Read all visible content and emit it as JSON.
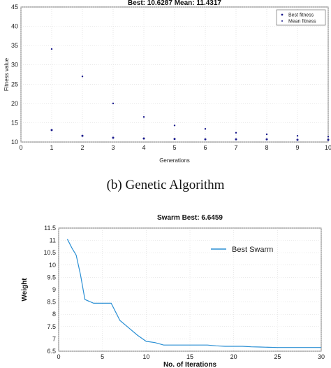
{
  "caption": "(b) Genetic Algorithm",
  "chart_data": [
    {
      "type": "scatter",
      "title": "Best: 10.6287 Mean: 11.4317",
      "xlabel": "Generations",
      "ylabel": "Fitness value",
      "xlim": [
        0,
        10
      ],
      "ylim": [
        10,
        45
      ],
      "xticks": [
        0,
        1,
        2,
        3,
        4,
        5,
        6,
        7,
        8,
        9,
        10
      ],
      "yticks": [
        10,
        15,
        20,
        25,
        30,
        35,
        40,
        45
      ],
      "legend_position": "top-right",
      "series": [
        {
          "name": "Best fitness",
          "color": "#1a1a8c",
          "x": [
            1,
            2,
            3,
            4,
            5,
            6,
            7,
            8,
            9,
            10
          ],
          "y": [
            13.1,
            11.6,
            11.1,
            10.9,
            10.8,
            10.7,
            10.7,
            10.7,
            10.6,
            10.6
          ]
        },
        {
          "name": "Mean fitness",
          "color": "#1a1a8c",
          "x": [
            1,
            2,
            3,
            4,
            5,
            6,
            7,
            8,
            9,
            10
          ],
          "y": [
            34.1,
            27.0,
            20.0,
            16.5,
            14.3,
            13.4,
            12.4,
            12.0,
            11.6,
            11.4
          ]
        }
      ]
    },
    {
      "type": "line",
      "title": "Swarm Best: 6.6459",
      "xlabel": "No. of Iterations",
      "ylabel": "Weight",
      "xlim": [
        0,
        30
      ],
      "ylim": [
        6.5,
        11.5
      ],
      "xticks": [
        0,
        5,
        10,
        15,
        20,
        25,
        30
      ],
      "yticks": [
        6.5,
        7,
        7.5,
        8,
        8.5,
        9,
        9.5,
        10,
        10.5,
        11,
        11.5
      ],
      "legend_position": "top-right",
      "series": [
        {
          "name": "Best Swarm",
          "color": "#2a8fd4",
          "x": [
            1,
            1.5,
            2,
            2.5,
            3,
            4,
            5,
            6,
            7,
            8,
            9,
            10,
            11,
            12,
            13,
            14,
            15,
            16,
            17,
            18,
            19,
            20,
            21,
            22,
            23,
            24,
            25,
            26,
            27,
            28,
            29,
            30
          ],
          "y": [
            11.05,
            10.7,
            10.4,
            9.6,
            8.6,
            8.45,
            8.45,
            8.45,
            7.75,
            7.45,
            7.15,
            6.9,
            6.85,
            6.75,
            6.75,
            6.75,
            6.75,
            6.75,
            6.75,
            6.72,
            6.7,
            6.7,
            6.7,
            6.68,
            6.67,
            6.66,
            6.65,
            6.65,
            6.65,
            6.65,
            6.65,
            6.65
          ]
        }
      ]
    }
  ]
}
